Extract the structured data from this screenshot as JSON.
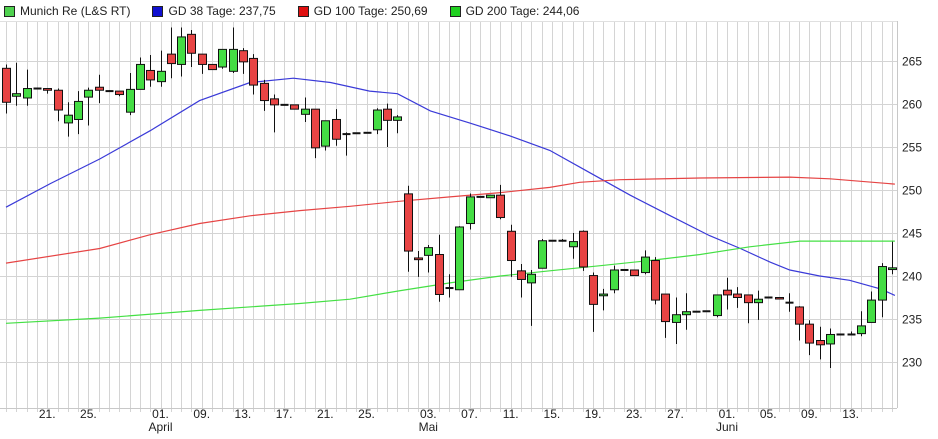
{
  "legend": [
    {
      "label": "Munich Re (L&S RT)",
      "color": "#4fd24f"
    },
    {
      "label": "GD 38 Tage: 237,75",
      "color": "#1010d0"
    },
    {
      "label": "GD 100 Tage: 250,69",
      "color": "#e01010"
    },
    {
      "label": "GD 200 Tage: 244,06",
      "color": "#20d020"
    }
  ],
  "chart_data": {
    "type": "candlestick",
    "title": "",
    "ylim": [
      228,
      270
    ],
    "yticks": [
      230,
      235,
      240,
      245,
      250,
      255,
      260,
      265
    ],
    "ytick_labels": [
      "230",
      "235",
      "240",
      "245",
      "250",
      "255",
      "260",
      "265"
    ],
    "grid": true,
    "colors": {
      "up": "#44dd44",
      "down": "#e84444",
      "gd38": "#3a3ad8",
      "gd100": "#e64444",
      "gd200": "#44e044"
    },
    "xticks": [
      {
        "index": 4,
        "label": "21."
      },
      {
        "index": 8,
        "label": "25."
      },
      {
        "index": 15,
        "label": "01.",
        "month": "April"
      },
      {
        "index": 19,
        "label": "09."
      },
      {
        "index": 23,
        "label": "13."
      },
      {
        "index": 27,
        "label": "17."
      },
      {
        "index": 31,
        "label": "21."
      },
      {
        "index": 35,
        "label": "25."
      },
      {
        "index": 41,
        "label": "03.",
        "month": "Mai"
      },
      {
        "index": 45,
        "label": "07."
      },
      {
        "index": 49,
        "label": "11."
      },
      {
        "index": 53,
        "label": "15."
      },
      {
        "index": 57,
        "label": "19."
      },
      {
        "index": 61,
        "label": "23."
      },
      {
        "index": 65,
        "label": "27."
      },
      {
        "index": 70,
        "label": "01.",
        "month": "Juni"
      },
      {
        "index": 74,
        "label": "05."
      },
      {
        "index": 78,
        "label": "09."
      },
      {
        "index": 82,
        "label": "13."
      }
    ],
    "ohlc_fields": [
      "open",
      "high",
      "low",
      "close"
    ],
    "candles": [
      [
        264.15,
        264.6,
        258.9,
        260.2
      ],
      [
        260.9,
        264.8,
        259.8,
        261.2
      ],
      [
        260.7,
        264.0,
        259.8,
        261.8
      ],
      [
        261.8,
        261.9,
        261.7,
        261.8
      ],
      [
        261.8,
        261.8,
        261.2,
        261.6
      ],
      [
        261.6,
        261.8,
        258.0,
        259.3
      ],
      [
        257.8,
        260.2,
        256.2,
        258.7
      ],
      [
        258.2,
        261.5,
        256.5,
        260.3
      ],
      [
        260.8,
        261.9,
        257.5,
        261.6
      ],
      [
        261.95,
        263.4,
        260.1,
        261.6
      ],
      [
        261.5,
        261.6,
        261.4,
        261.5
      ],
      [
        261.5,
        261.5,
        260.9,
        261.1
      ],
      [
        259.05,
        263.6,
        258.7,
        261.7
      ],
      [
        261.7,
        265.4,
        261.7,
        264.6
      ],
      [
        263.9,
        265.7,
        262.0,
        262.8
      ],
      [
        262.6,
        266.2,
        262.0,
        263.8
      ],
      [
        265.8,
        268.9,
        263.0,
        264.7
      ],
      [
        264.6,
        268.9,
        263.2,
        267.8
      ],
      [
        268.1,
        268.6,
        264.3,
        265.9
      ],
      [
        265.8,
        265.8,
        263.5,
        264.6
      ],
      [
        264.6,
        264.6,
        264.0,
        264.0
      ],
      [
        264.3,
        266.35,
        264.1,
        266.35
      ],
      [
        263.8,
        268.9,
        263.6,
        266.35
      ],
      [
        266.2,
        266.5,
        263.5,
        264.9
      ],
      [
        265.3,
        265.8,
        261.1,
        262.2
      ],
      [
        262.4,
        262.8,
        259.2,
        260.4
      ],
      [
        260.6,
        261.1,
        256.7,
        259.9
      ],
      [
        259.9,
        259.9,
        259.9,
        259.9
      ],
      [
        259.9,
        259.9,
        259.4,
        259.4
      ],
      [
        258.8,
        260.75,
        257.9,
        259.4
      ],
      [
        259.4,
        259.4,
        253.7,
        254.9
      ],
      [
        255.1,
        258.05,
        254.6,
        258.05
      ],
      [
        258.2,
        259.4,
        255.15,
        255.9
      ],
      [
        256.5,
        256.7,
        254.0,
        256.5
      ],
      [
        256.6,
        256.6,
        256.6,
        256.6
      ],
      [
        256.65,
        256.65,
        256.65,
        256.65
      ],
      [
        257.0,
        259.5,
        256.5,
        259.3
      ],
      [
        259.4,
        260.05,
        255.0,
        258.1
      ],
      [
        258.1,
        258.7,
        256.6,
        258.5
      ],
      [
        249.55,
        250.5,
        240.5,
        242.9
      ],
      [
        242.1,
        242.9,
        239.9,
        241.9
      ],
      [
        242.4,
        243.6,
        240.4,
        243.3
      ],
      [
        242.5,
        244.8,
        237.0,
        237.85
      ],
      [
        238.6,
        240.2,
        237.5,
        238.6
      ],
      [
        238.4,
        245.8,
        238.4,
        245.7
      ],
      [
        246.1,
        249.6,
        245.4,
        249.2
      ],
      [
        249.2,
        249.2,
        249.2,
        249.2
      ],
      [
        249.1,
        249.4,
        249.1,
        249.4
      ],
      [
        249.4,
        250.6,
        246.6,
        246.8
      ],
      [
        245.2,
        245.96,
        239.9,
        241.8
      ],
      [
        240.6,
        241.4,
        237.5,
        239.6
      ],
      [
        239.2,
        240.7,
        234.2,
        240.2
      ],
      [
        240.9,
        244.3,
        240.9,
        244.1
      ],
      [
        244.1,
        244.1,
        244.1,
        244.1
      ],
      [
        244.1,
        244.3,
        244.0,
        244.1
      ],
      [
        243.4,
        245.0,
        242.0,
        244.0
      ],
      [
        245.2,
        245.3,
        240.6,
        241.05
      ],
      [
        240.05,
        240.4,
        233.5,
        236.7
      ],
      [
        237.7,
        238.5,
        236.0,
        237.9
      ],
      [
        238.4,
        241.2,
        238.0,
        240.7
      ],
      [
        240.7,
        240.7,
        240.7,
        240.7
      ],
      [
        240.7,
        240.7,
        240.05,
        240.05
      ],
      [
        240.4,
        242.98,
        240.2,
        242.2
      ],
      [
        241.8,
        242.2,
        236.7,
        237.2
      ],
      [
        237.9,
        237.9,
        232.8,
        234.7
      ],
      [
        234.6,
        237.5,
        232.1,
        235.5
      ],
      [
        235.5,
        238.0,
        233.75,
        235.85
      ],
      [
        235.85,
        235.85,
        235.85,
        235.85
      ],
      [
        235.9,
        235.9,
        235.9,
        235.9
      ],
      [
        235.4,
        237.8,
        235.2,
        237.8
      ],
      [
        238.35,
        239.8,
        236.1,
        237.8
      ],
      [
        237.9,
        238.7,
        236.3,
        237.5
      ],
      [
        237.8,
        237.8,
        234.5,
        236.9
      ],
      [
        236.9,
        238.3,
        234.9,
        237.3
      ],
      [
        237.5,
        237.5,
        237.5,
        237.5
      ],
      [
        237.5,
        237.5,
        237.35,
        237.35
      ],
      [
        236.9,
        238.0,
        235.85,
        236.9
      ],
      [
        236.4,
        236.5,
        232.5,
        234.4
      ],
      [
        234.4,
        234.85,
        230.8,
        232.2
      ],
      [
        232.5,
        234.1,
        230.3,
        232.0
      ],
      [
        232.1,
        233.9,
        229.3,
        233.2
      ],
      [
        233.2,
        233.2,
        233.2,
        233.2
      ],
      [
        233.2,
        233.55,
        233.2,
        233.2
      ],
      [
        233.3,
        235.9,
        233.0,
        234.2
      ],
      [
        234.6,
        238.2,
        234.6,
        237.2
      ],
      [
        237.2,
        241.5,
        235.2,
        241.1
      ],
      [
        240.75,
        244.0,
        240.2,
        240.95
      ]
    ],
    "series": [
      {
        "name": "GD 38 Tage",
        "key": "gd38",
        "points": [
          [
            0,
            248.0
          ],
          [
            4.3,
            250.75
          ],
          [
            9.1,
            253.6
          ],
          [
            14,
            256.9
          ],
          [
            18.8,
            260.4
          ],
          [
            23.7,
            262.5
          ],
          [
            27.9,
            263.0
          ],
          [
            31.5,
            262.5
          ],
          [
            35.3,
            261.5
          ],
          [
            38,
            261.2
          ],
          [
            41.2,
            259.2
          ],
          [
            45,
            257.8
          ],
          [
            48.9,
            256.3
          ],
          [
            52.8,
            254.6
          ],
          [
            56.7,
            252.0
          ],
          [
            60.6,
            249.4
          ],
          [
            64.5,
            247.0
          ],
          [
            68.3,
            244.7
          ],
          [
            71.3,
            243.2
          ],
          [
            74.2,
            241.6
          ],
          [
            76.1,
            240.7
          ],
          [
            79,
            240.0
          ],
          [
            81.9,
            239.5
          ],
          [
            84.9,
            238.5
          ],
          [
            86.3,
            237.75
          ]
        ]
      },
      {
        "name": "GD 100 Tage",
        "key": "gd100",
        "points": [
          [
            0,
            241.5
          ],
          [
            9.1,
            243.2
          ],
          [
            14,
            244.8
          ],
          [
            18.8,
            246.1
          ],
          [
            23.7,
            247.0
          ],
          [
            28.5,
            247.6
          ],
          [
            33.4,
            248.1
          ],
          [
            38.3,
            248.7
          ],
          [
            43.1,
            249.2
          ],
          [
            48,
            249.7
          ],
          [
            52.8,
            250.3
          ],
          [
            55.7,
            250.9
          ],
          [
            59.6,
            251.2
          ],
          [
            67.4,
            251.4
          ],
          [
            76.1,
            251.5
          ],
          [
            80,
            251.3
          ],
          [
            86.3,
            250.69
          ]
        ]
      },
      {
        "name": "GD 200 Tage",
        "key": "gd200",
        "points": [
          [
            0,
            234.5
          ],
          [
            9.1,
            235.1
          ],
          [
            18.8,
            236.0
          ],
          [
            28.5,
            236.8
          ],
          [
            33.4,
            237.3
          ],
          [
            38.3,
            238.3
          ],
          [
            43.1,
            239.2
          ],
          [
            48,
            240.0
          ],
          [
            52.8,
            240.6
          ],
          [
            57.7,
            241.2
          ],
          [
            62.5,
            241.8
          ],
          [
            67.4,
            242.5
          ],
          [
            72.2,
            243.4
          ],
          [
            77.1,
            244.06
          ],
          [
            79,
            244.06
          ],
          [
            86.3,
            244.06
          ]
        ]
      }
    ]
  }
}
